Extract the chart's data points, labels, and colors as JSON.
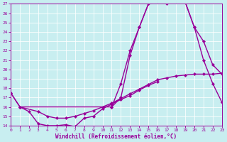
{
  "xlabel": "Windchill (Refroidissement éolien,°C)",
  "xlim": [
    0,
    23
  ],
  "ylim": [
    14,
    27
  ],
  "xticks": [
    0,
    1,
    2,
    3,
    4,
    5,
    6,
    7,
    8,
    9,
    10,
    11,
    12,
    13,
    14,
    15,
    16,
    17,
    18,
    19,
    20,
    21,
    22,
    23
  ],
  "yticks": [
    14,
    15,
    16,
    17,
    18,
    19,
    20,
    21,
    22,
    23,
    24,
    25,
    26,
    27
  ],
  "bg_color": "#c8eef0",
  "line_color": "#990099",
  "lw": 1.0,
  "ms": 2.2,
  "curve_A_x": [
    0,
    1,
    2,
    3,
    4,
    5,
    6,
    7,
    8,
    9,
    10,
    11,
    12,
    13,
    14,
    15,
    16
  ],
  "curve_A_y": [
    17.5,
    16.0,
    15.5,
    14.2,
    14.0,
    14.0,
    14.1,
    13.9,
    14.8,
    15.0,
    15.8,
    16.3,
    16.8,
    17.2,
    17.8,
    18.3,
    18.7
  ],
  "curve_B_x": [
    0,
    1,
    3,
    4,
    5,
    6,
    7,
    8,
    9,
    10,
    11,
    12,
    13,
    14,
    15,
    16,
    17,
    18,
    19,
    20,
    21,
    22,
    23
  ],
  "curve_B_y": [
    17.5,
    16.0,
    15.5,
    15.0,
    14.8,
    14.8,
    15.0,
    15.3,
    15.6,
    16.0,
    16.4,
    16.9,
    17.4,
    17.9,
    18.4,
    18.9,
    19.1,
    19.3,
    19.4,
    19.5,
    19.5,
    19.5,
    19.6
  ],
  "curve_C_x": [
    1,
    11,
    12,
    13,
    14,
    15,
    16,
    17,
    18,
    19,
    20,
    21,
    22,
    23
  ],
  "curve_C_y": [
    16.0,
    16.0,
    17.0,
    21.5,
    24.5,
    27.0,
    27.2,
    27.0,
    27.5,
    27.2,
    24.5,
    23.0,
    20.5,
    19.5
  ],
  "curve_D_x": [
    11,
    12,
    13,
    14,
    15,
    16,
    17,
    18,
    19,
    20,
    21,
    22,
    23
  ],
  "curve_D_y": [
    16.0,
    18.5,
    22.0,
    24.5,
    27.0,
    27.2,
    27.5,
    27.5,
    27.2,
    24.5,
    21.0,
    18.5,
    16.5
  ]
}
